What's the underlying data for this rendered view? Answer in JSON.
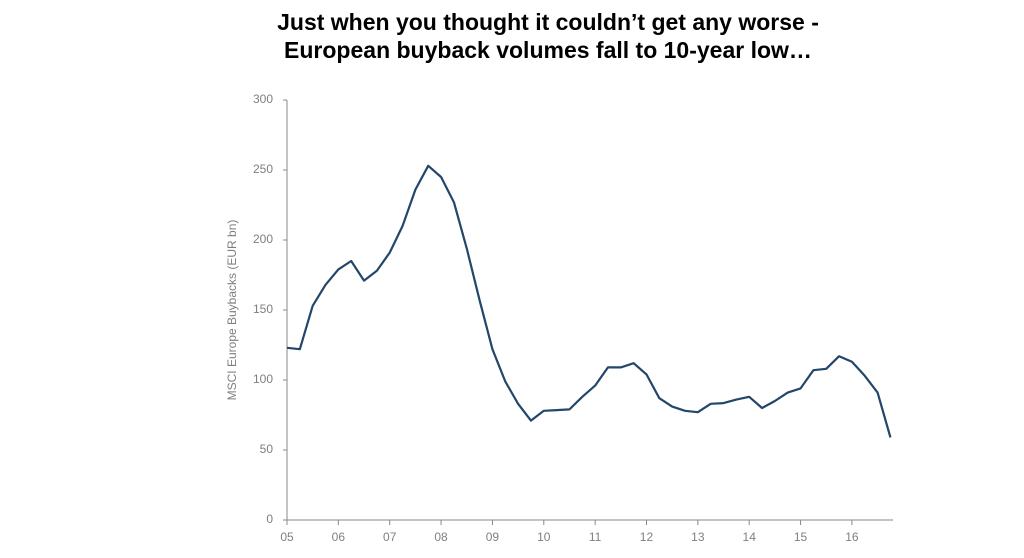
{
  "chart_data": {
    "type": "line",
    "title": [
      "Just when you thought it couldn’t get any worse -",
      "European buyback volumes fall to 10-year low…"
    ],
    "y_label": "MSCI Europe Buybacks (EUR bn)",
    "x": [
      5.0,
      5.25,
      5.5,
      5.75,
      6.0,
      6.25,
      6.5,
      6.75,
      7.0,
      7.25,
      7.5,
      7.75,
      8.0,
      8.25,
      8.5,
      8.75,
      9.0,
      9.25,
      9.5,
      9.75,
      10.0,
      10.25,
      10.5,
      10.75,
      11.0,
      11.25,
      11.5,
      11.75,
      12.0,
      12.25,
      12.5,
      12.75,
      13.0,
      13.25,
      13.5,
      13.75,
      14.0,
      14.25,
      14.5,
      14.75,
      15.0,
      15.25,
      15.5,
      15.75,
      16.0,
      16.25,
      16.5,
      16.75
    ],
    "series": [
      {
        "name": "MSCI Europe Buybacks",
        "color": "#23466b",
        "values": [
          123,
          122,
          153,
          168,
          179,
          185,
          171,
          178,
          191,
          210,
          236,
          253,
          245,
          227,
          194,
          157,
          122,
          99,
          83,
          71,
          78,
          78.5,
          79,
          88,
          96,
          109,
          109,
          112,
          104,
          87,
          81,
          78,
          77,
          83,
          83.5,
          86,
          88,
          80,
          85,
          91,
          94,
          107,
          108,
          117,
          113,
          103,
          91,
          59
        ]
      }
    ],
    "xlim": [
      5,
      16.8
    ],
    "xticks": [
      {
        "value": 5,
        "label": "05"
      },
      {
        "value": 6,
        "label": "06"
      },
      {
        "value": 7,
        "label": "07"
      },
      {
        "value": 8,
        "label": "08"
      },
      {
        "value": 9,
        "label": "09"
      },
      10,
      11,
      12,
      13,
      14,
      15,
      16
    ],
    "ylim": [
      0,
      300
    ],
    "yticks": [
      0,
      50,
      100,
      150,
      200,
      250,
      300
    ],
    "grid": false
  }
}
